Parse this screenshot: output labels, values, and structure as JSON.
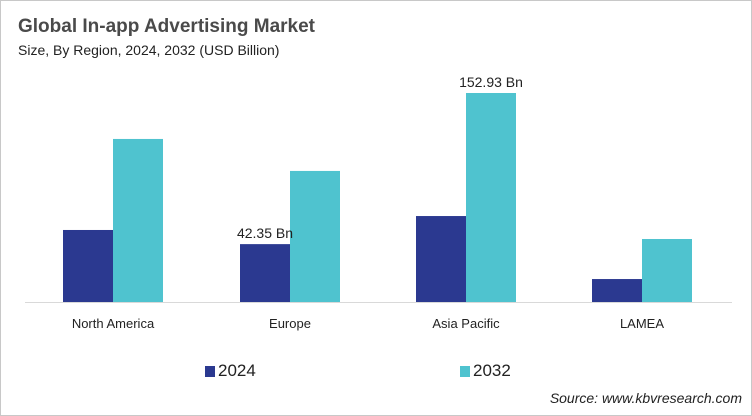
{
  "chart_data": {
    "type": "bar",
    "title": "Global In-app Advertising Market",
    "subtitle": "Size, By Region, 2024, 2032 (USD Billion)",
    "xlabel": "",
    "ylabel": "USD Billion",
    "categories": [
      "North America",
      "Europe",
      "Asia Pacific",
      "LAMEA"
    ],
    "series": [
      {
        "name": "2024",
        "color": "#2b3990",
        "values": [
          52.7,
          42.35,
          62.9,
          16.8
        ]
      },
      {
        "name": "2032",
        "color": "#4fc3cf",
        "values": [
          119.3,
          95.9,
          152.93,
          46.1
        ]
      }
    ],
    "data_labels": [
      {
        "series": "2024",
        "category": "Europe",
        "text": "42.35 Bn"
      },
      {
        "series": "2032",
        "category": "Asia Pacific",
        "text": "152.93 Bn"
      }
    ],
    "ylim": [
      0,
      160
    ],
    "grid": false,
    "legend_position": "bottom",
    "source": "Source: www.kbvresearch.com"
  }
}
